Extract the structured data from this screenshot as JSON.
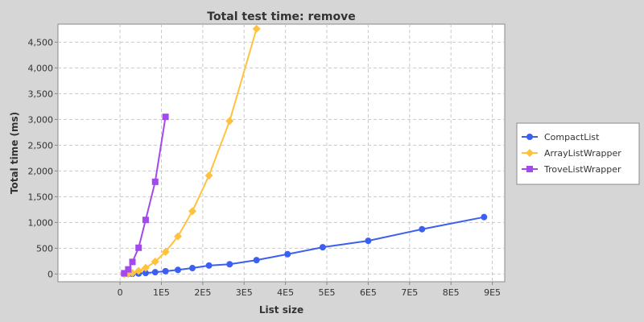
{
  "chart_data": {
    "type": "line",
    "title": "Total test time: remove",
    "xlabel": "List size",
    "ylabel": "Total time (ms)",
    "xlim": [
      -150000,
      930000
    ],
    "ylim": [
      -150,
      4850
    ],
    "x_ticks": [
      0,
      100000,
      200000,
      300000,
      400000,
      500000,
      600000,
      700000,
      800000,
      900000
    ],
    "x_tick_labels": [
      "0",
      "1E5",
      "2E5",
      "3E5",
      "4E5",
      "5E5",
      "6E5",
      "7E5",
      "8E5",
      "9E5"
    ],
    "y_ticks": [
      0,
      500,
      1000,
      1500,
      2000,
      2500,
      3000,
      3500,
      4000,
      4500
    ],
    "y_tick_labels": [
      "0",
      "500",
      "1,000",
      "1,500",
      "2,000",
      "2,500",
      "3,000",
      "3,500",
      "4,000",
      "4,500"
    ],
    "grid": true,
    "legend_position": "right",
    "series": [
      {
        "name": "CompactList",
        "color": "#3b5ff0",
        "marker": "circle",
        "x": [
          10000,
          20000,
          30000,
          45000,
          62000,
          85000,
          110000,
          140000,
          175000,
          215000,
          265000,
          330000,
          405000,
          490000,
          600000,
          730000,
          880000
        ],
        "y": [
          0,
          2,
          4,
          10,
          20,
          35,
          55,
          80,
          115,
          165,
          190,
          270,
          385,
          520,
          645,
          870,
          1105
        ]
      },
      {
        "name": "ArrayListWrapper",
        "color": "#ffc23d",
        "marker": "diamond",
        "x": [
          10000,
          20000,
          30000,
          45000,
          62000,
          85000,
          110000,
          140000,
          175000,
          215000,
          265000,
          330000
        ],
        "y": [
          0,
          5,
          20,
          60,
          120,
          240,
          430,
          730,
          1220,
          1910,
          2970,
          4760
        ]
      },
      {
        "name": "TroveListWrapper",
        "color": "#a34aee",
        "marker": "square",
        "x": [
          10000,
          20000,
          30000,
          45000,
          62000,
          85000,
          110000
        ],
        "y": [
          15,
          90,
          235,
          510,
          1050,
          1790,
          3050
        ]
      }
    ]
  }
}
